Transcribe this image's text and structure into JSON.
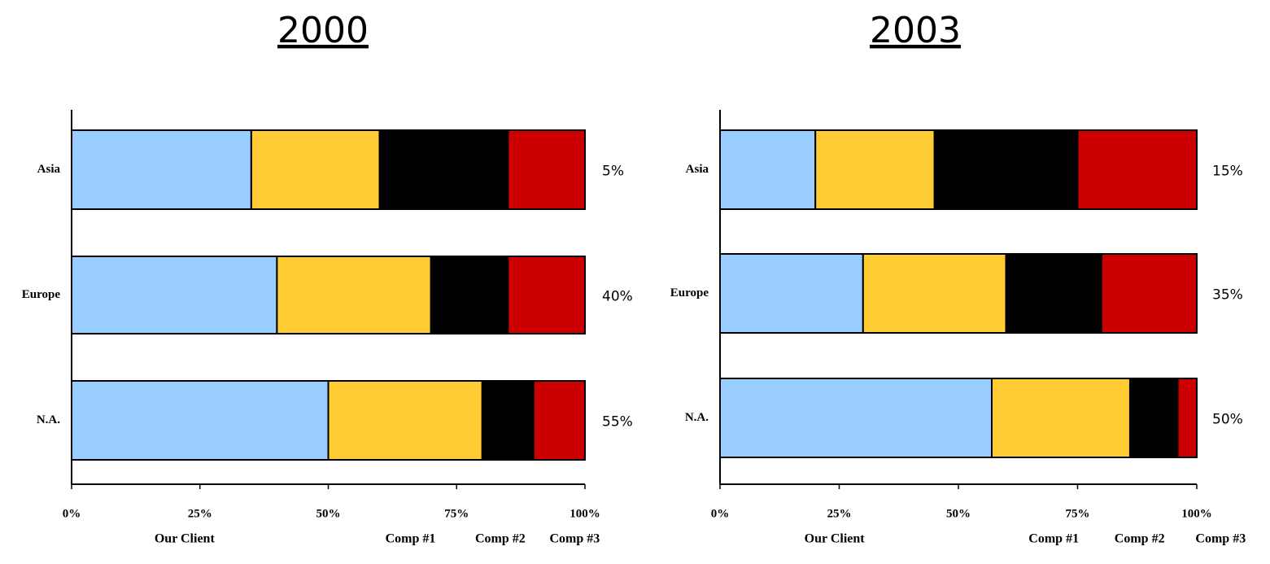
{
  "chart_data": [
    {
      "type": "bar",
      "stacked": true,
      "orientation": "horizontal",
      "title": "2000",
      "categories": [
        "Asia",
        "Europe",
        "N.A."
      ],
      "series": [
        {
          "name": "Our Client",
          "color": "#99ccff",
          "values": [
            35,
            40,
            50
          ]
        },
        {
          "name": "Comp #1",
          "color": "#ffcc33",
          "values": [
            25,
            30,
            30
          ]
        },
        {
          "name": "Comp #2",
          "color": "#000000",
          "values": [
            25,
            15,
            10
          ]
        },
        {
          "name": "Comp #3",
          "color": "#cc0000",
          "values": [
            15,
            15,
            10
          ]
        }
      ],
      "region_share": {
        "values": [
          5,
          40,
          55
        ],
        "value_labels": [
          "5%",
          "40%",
          "55%"
        ]
      },
      "xlim": [
        0,
        100
      ],
      "xticks": [
        {
          "value": 0,
          "label": "0%"
        },
        {
          "value": 25,
          "label": "25%"
        },
        {
          "value": 50,
          "label": "50%"
        },
        {
          "value": 75,
          "label": "75%"
        },
        {
          "value": 100,
          "label": "100%"
        }
      ]
    },
    {
      "type": "bar",
      "stacked": true,
      "orientation": "horizontal",
      "title": "2003",
      "categories": [
        "Asia",
        "Europe",
        "N.A."
      ],
      "series": [
        {
          "name": "Our Client",
          "color": "#99ccff",
          "values": [
            20,
            30,
            57
          ]
        },
        {
          "name": "Comp #1",
          "color": "#ffcc33",
          "values": [
            25,
            30,
            29
          ]
        },
        {
          "name": "Comp #2",
          "color": "#000000",
          "values": [
            30,
            20,
            10
          ]
        },
        {
          "name": "Comp #3",
          "color": "#cc0000",
          "values": [
            25,
            20,
            4
          ]
        }
      ],
      "region_share": {
        "values": [
          15,
          35,
          50
        ],
        "value_labels": [
          "15%",
          "35%",
          "50%"
        ]
      },
      "xlim": [
        0,
        100
      ],
      "xticks": [
        {
          "value": 0,
          "label": "0%"
        },
        {
          "value": 25,
          "label": "25%"
        },
        {
          "value": 50,
          "label": "50%"
        },
        {
          "value": 75,
          "label": "75%"
        },
        {
          "value": 100,
          "label": "100%"
        }
      ]
    }
  ]
}
